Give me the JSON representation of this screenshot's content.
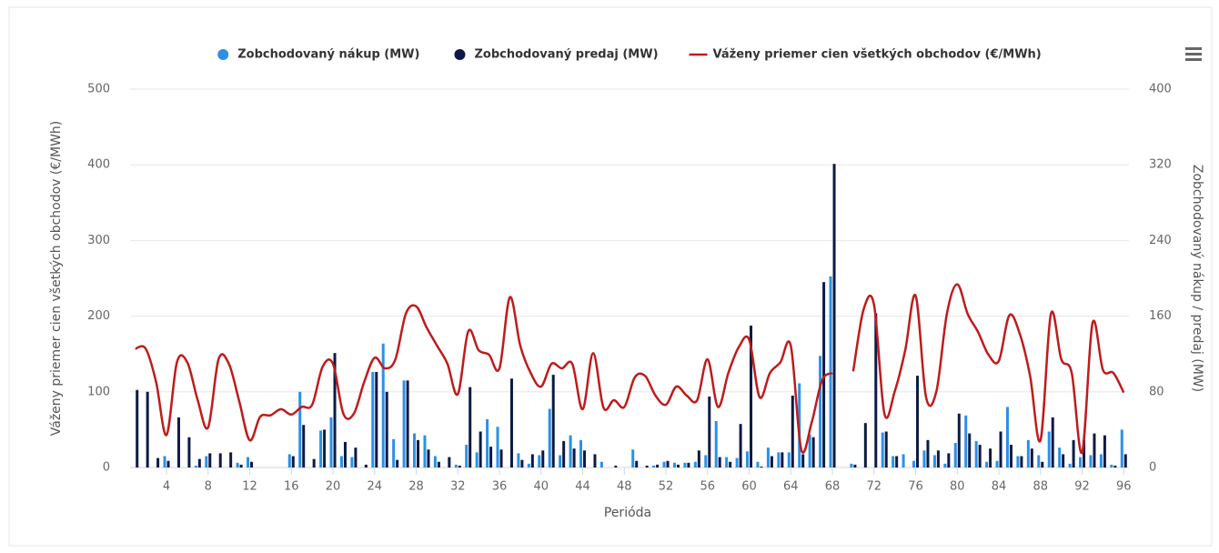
{
  "chart_data": {
    "type": "bar-line",
    "x_label": "Perióda",
    "y_label": "Váženy priemer cien všetkých obchodov (€/MWh)",
    "y2_label": "Zobchodovaný nákup / predaj (MW)",
    "x": [
      1,
      2,
      3,
      4,
      5,
      6,
      7,
      8,
      9,
      10,
      11,
      12,
      13,
      14,
      15,
      16,
      17,
      18,
      19,
      20,
      21,
      22,
      23,
      24,
      25,
      26,
      27,
      28,
      29,
      30,
      31,
      32,
      33,
      34,
      35,
      36,
      37,
      38,
      39,
      40,
      41,
      42,
      43,
      44,
      45,
      46,
      47,
      48,
      49,
      50,
      51,
      52,
      53,
      54,
      55,
      56,
      57,
      58,
      59,
      60,
      61,
      62,
      63,
      64,
      65,
      66,
      67,
      68,
      69,
      70,
      71,
      72,
      73,
      74,
      75,
      76,
      77,
      78,
      79,
      80,
      81,
      82,
      83,
      84,
      85,
      86,
      87,
      88,
      89,
      90,
      91,
      92,
      93,
      94,
      95,
      96
    ],
    "xlim": [
      0.5,
      96.5
    ],
    "xticks": [
      4,
      8,
      12,
      16,
      20,
      24,
      28,
      32,
      36,
      40,
      44,
      48,
      52,
      56,
      60,
      64,
      68,
      72,
      76,
      80,
      84,
      88,
      92,
      96
    ],
    "ylim": [
      0,
      500
    ],
    "yticks": [
      0,
      100,
      200,
      300,
      400,
      500
    ],
    "y2lim": [
      0,
      400
    ],
    "y2ticks": [
      0,
      80,
      160,
      240,
      320,
      400
    ],
    "grid": true,
    "legend": "top",
    "series": [
      {
        "name": "Zobchodovaný nákup (MW)",
        "type": "bar",
        "axis": "y2",
        "color": "#2b90e8",
        "values": [
          0,
          0,
          0,
          12,
          0,
          0,
          2,
          12,
          0,
          0,
          5,
          11,
          0,
          0,
          0,
          14,
          80,
          0,
          39,
          53,
          12,
          11,
          0,
          101,
          131,
          30,
          92,
          36,
          34,
          12,
          0,
          3,
          24,
          16,
          51,
          43,
          0,
          15,
          4,
          13,
          62,
          13,
          34,
          29,
          0,
          6,
          0,
          0,
          19,
          0,
          2,
          6,
          5,
          5,
          6,
          13,
          49,
          11,
          10,
          17,
          6,
          21,
          16,
          16,
          89,
          35,
          118,
          202,
          0,
          4,
          0,
          0,
          37,
          12,
          14,
          7,
          18,
          13,
          4,
          26,
          55,
          28,
          6,
          7,
          64,
          12,
          29,
          13,
          38,
          21,
          4,
          11,
          13,
          14,
          3,
          40
        ]
      },
      {
        "name": "Zobchodovaný predaj (MW)",
        "type": "bar",
        "axis": "y2",
        "color": "#0c1a45",
        "values": [
          82,
          80,
          10,
          7,
          53,
          32,
          9,
          15,
          15,
          16,
          3,
          6,
          0,
          0,
          0,
          12,
          45,
          9,
          40,
          121,
          27,
          21,
          3,
          101,
          80,
          8,
          92,
          29,
          19,
          6,
          11,
          2,
          85,
          38,
          22,
          19,
          94,
          8,
          14,
          18,
          98,
          28,
          20,
          18,
          14,
          0,
          2,
          0,
          7,
          2,
          3,
          7,
          3,
          5,
          18,
          75,
          11,
          6,
          46,
          150,
          1,
          12,
          16,
          76,
          14,
          32,
          196,
          321,
          0,
          3,
          47,
          163,
          38,
          12,
          0,
          97,
          29,
          18,
          15,
          57,
          36,
          24,
          20,
          38,
          24,
          12,
          20,
          6,
          53,
          14,
          29,
          29,
          36,
          34,
          2,
          14
        ]
      },
      {
        "name": "Váženy priemer cien všetkých obchodov (€/MWh)",
        "type": "line",
        "axis": "y",
        "color": "#bf1b1b",
        "values": [
          157,
          157,
          113,
          43,
          139,
          139,
          89,
          53,
          143,
          137,
          87,
          36,
          67,
          69,
          77,
          70,
          80,
          83,
          133,
          137,
          71,
          71,
          113,
          145,
          131,
          143,
          203,
          213,
          185,
          161,
          137,
          97,
          180,
          155,
          149,
          131,
          225,
          161,
          125,
          107,
          137,
          131,
          137,
          77,
          151,
          79,
          89,
          80,
          119,
          121,
          95,
          83,
          107,
          95,
          89,
          143,
          80,
          125,
          159,
          169,
          93,
          125,
          139,
          161,
          24,
          59,
          115,
          125,
          null,
          127,
          209,
          215,
          71,
          101,
          155,
          227,
          93,
          101,
          203,
          242,
          203,
          179,
          149,
          141,
          201,
          177,
          121,
          36,
          203,
          143,
          125,
          20,
          191,
          129,
          125,
          99
        ]
      }
    ]
  }
}
